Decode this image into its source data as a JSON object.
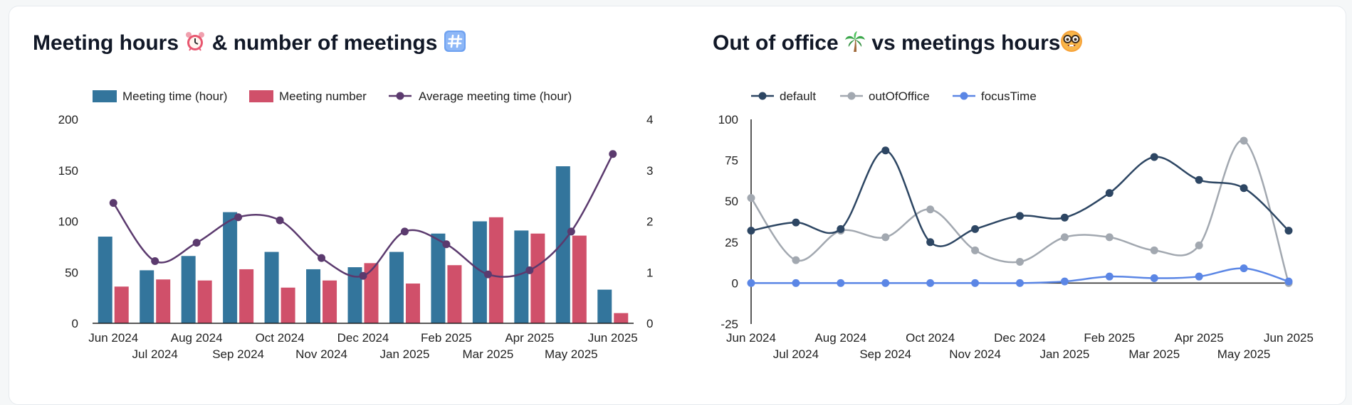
{
  "left": {
    "title_part1": "Meeting hours",
    "title_part2": "& number of meetings"
  },
  "right": {
    "title_part1": "Out of office",
    "title_part2": "vs  meetings hours"
  },
  "chart_data": [
    {
      "type": "bar",
      "title": "Meeting hours ⏰ & number of meetings #️⃣",
      "categories": [
        "Jun 2024",
        "Jul 2024",
        "Aug 2024",
        "Sep 2024",
        "Oct 2024",
        "Nov 2024",
        "Dec 2024",
        "Jan 2025",
        "Feb 2025",
        "Mar 2025",
        "Apr 2025",
        "May 2025",
        "Jun 2025"
      ],
      "series": [
        {
          "name": "Meeting time (hour)",
          "type": "bar",
          "axis": "left",
          "color": "#33759c",
          "values": [
            85,
            52,
            66,
            109,
            70,
            53,
            55,
            70,
            88,
            100,
            91,
            154,
            33
          ]
        },
        {
          "name": "Meeting number",
          "type": "bar",
          "axis": "left",
          "color": "#d0506a",
          "values": [
            36,
            43,
            42,
            53,
            35,
            42,
            59,
            39,
            57,
            104,
            88,
            86,
            10
          ]
        },
        {
          "name": "Average meeting time (hour)",
          "type": "line",
          "axis": "right",
          "color": "#5b3a6e",
          "values": [
            2.36,
            1.22,
            1.58,
            2.08,
            2.02,
            1.28,
            0.93,
            1.8,
            1.55,
            0.96,
            1.04,
            1.8,
            3.32
          ]
        }
      ],
      "y_left": {
        "min": 0,
        "max": 200,
        "ticks": [
          0,
          50,
          100,
          150,
          200
        ]
      },
      "y_right": {
        "min": 0,
        "max": 4,
        "ticks": [
          0,
          1,
          2,
          3,
          4
        ]
      },
      "legend_position": "top-left",
      "grid": false
    },
    {
      "type": "line",
      "title": "Out of office 🌴 vs meetings hours 🤓",
      "categories": [
        "Jun 2024",
        "Jul 2024",
        "Aug 2024",
        "Sep 2024",
        "Oct 2024",
        "Nov 2024",
        "Dec 2024",
        "Jan 2025",
        "Feb 2025",
        "Mar 2025",
        "Apr 2025",
        "May 2025",
        "Jun 2025"
      ],
      "series": [
        {
          "name": "default",
          "color": "#2d4663",
          "values": [
            32,
            37,
            33,
            81,
            25,
            33,
            41,
            40,
            55,
            77,
            63,
            58,
            32
          ]
        },
        {
          "name": "outOfOffice",
          "color": "#a2a8b0",
          "values": [
            52,
            14,
            32,
            28,
            45,
            20,
            13,
            28,
            28,
            20,
            23,
            87,
            0
          ]
        },
        {
          "name": "focusTime",
          "color": "#5b86e5",
          "values": [
            0,
            0,
            0,
            0,
            0,
            0,
            0,
            1,
            4,
            3,
            4,
            9,
            1
          ]
        }
      ],
      "y": {
        "min": -25,
        "max": 100,
        "ticks": [
          -25,
          0,
          25,
          50,
          75,
          100
        ]
      },
      "legend_position": "top-left",
      "grid": false
    }
  ]
}
